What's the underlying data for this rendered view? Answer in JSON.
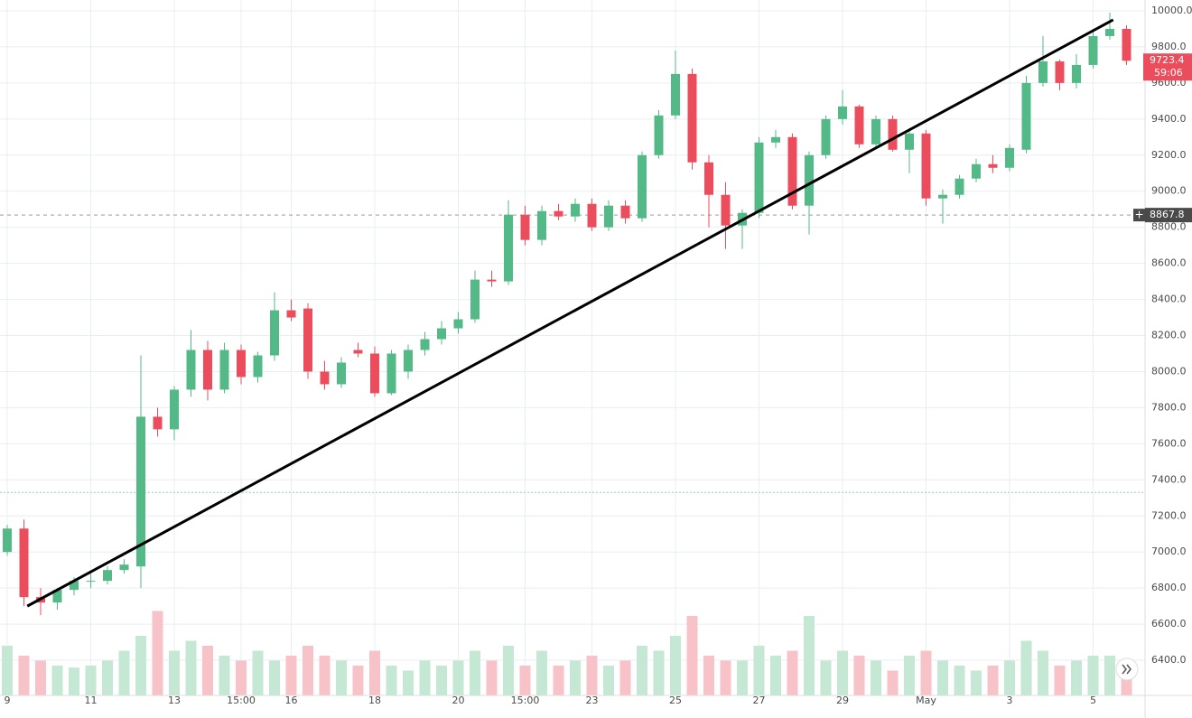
{
  "chart_data": {
    "type": "candlestick",
    "categories": [
      "9",
      null,
      null,
      null,
      null,
      "11",
      null,
      null,
      null,
      null,
      "13",
      null,
      null,
      null,
      "15:00",
      null,
      null,
      "16",
      null,
      null,
      null,
      null,
      "18",
      null,
      null,
      null,
      null,
      "20",
      null,
      null,
      null,
      "15:00",
      null,
      null,
      null,
      "23",
      null,
      null,
      null,
      null,
      "25",
      null,
      null,
      null,
      null,
      "27",
      null,
      null,
      null,
      null,
      "29",
      null,
      null,
      null,
      null,
      "May",
      null,
      null,
      null,
      null,
      "3",
      null,
      null,
      null,
      null,
      "5",
      null,
      null
    ],
    "open": [
      7000,
      7130,
      6750,
      6720,
      6790,
      6840,
      6840,
      6900,
      6920,
      7750,
      7680,
      7900,
      8120,
      7900,
      8120,
      7970,
      8090,
      8340,
      8350,
      8000,
      7930,
      8120,
      8100,
      7880,
      8000,
      8120,
      8180,
      8240,
      8290,
      8510,
      8500,
      8870,
      8730,
      8890,
      8860,
      8930,
      8800,
      8920,
      8850,
      9200,
      9420,
      9650,
      9160,
      8980,
      8810,
      8880,
      9270,
      9300,
      8920,
      9200,
      9400,
      9470,
      9260,
      9400,
      9230,
      9320,
      8960,
      8980,
      9070,
      9150,
      9130,
      9230,
      9600,
      9720,
      9600,
      9700,
      9860,
      9900
    ],
    "high": [
      7150,
      7180,
      6800,
      6800,
      6860,
      6880,
      6920,
      6960,
      8090,
      7800,
      7920,
      8230,
      8170,
      8160,
      8150,
      8110,
      8440,
      8400,
      8380,
      8060,
      8080,
      8160,
      8140,
      8120,
      8150,
      8220,
      8280,
      8330,
      8560,
      8560,
      8950,
      8920,
      8920,
      8930,
      8960,
      8960,
      8950,
      8950,
      9220,
      9450,
      9780,
      9680,
      9200,
      9050,
      8900,
      9300,
      9340,
      9320,
      9220,
      9420,
      9560,
      9480,
      9420,
      9420,
      9350,
      9340,
      9010,
      9090,
      9180,
      9200,
      9260,
      9640,
      9860,
      9730,
      9760,
      9900,
      9990,
      9920
    ],
    "low": [
      6980,
      6700,
      6650,
      6680,
      6760,
      6800,
      6820,
      6880,
      6800,
      7640,
      7620,
      7860,
      7840,
      7880,
      7930,
      7940,
      8060,
      8280,
      7960,
      7900,
      7910,
      8080,
      7860,
      7870,
      7960,
      8090,
      8150,
      8210,
      8270,
      8470,
      8480,
      8700,
      8700,
      8840,
      8830,
      8780,
      8780,
      8820,
      8830,
      9180,
      9400,
      9120,
      8800,
      8680,
      8680,
      8850,
      9240,
      8900,
      8760,
      9180,
      9370,
      9240,
      9240,
      9220,
      9100,
      8920,
      8820,
      8960,
      9050,
      9100,
      9110,
      9210,
      9580,
      9560,
      9570,
      9680,
      9840,
      9700
    ],
    "close": [
      7130,
      6750,
      6720,
      6790,
      6840,
      6840,
      6900,
      6930,
      7750,
      7680,
      7900,
      8120,
      7900,
      8120,
      7970,
      8090,
      8340,
      8300,
      8000,
      7930,
      8050,
      8100,
      7880,
      8100,
      8120,
      8180,
      8240,
      8290,
      8510,
      8500,
      8870,
      8730,
      8890,
      8860,
      8930,
      8800,
      8920,
      8850,
      9200,
      9420,
      9650,
      9160,
      8980,
      8810,
      8880,
      9270,
      9300,
      8920,
      9200,
      9400,
      9470,
      9260,
      9400,
      9230,
      9320,
      8960,
      8980,
      9070,
      9150,
      9130,
      9240,
      9600,
      9720,
      9600,
      9700,
      9860,
      9900,
      9723.4
    ],
    "volume": [
      50,
      40,
      35,
      30,
      28,
      30,
      35,
      45,
      60,
      85,
      45,
      55,
      50,
      40,
      35,
      45,
      35,
      40,
      50,
      40,
      35,
      30,
      45,
      30,
      25,
      35,
      30,
      35,
      45,
      35,
      50,
      30,
      45,
      30,
      35,
      40,
      30,
      35,
      50,
      45,
      60,
      80,
      40,
      35,
      35,
      50,
      40,
      45,
      80,
      35,
      45,
      40,
      35,
      25,
      40,
      45,
      35,
      30,
      25,
      30,
      35,
      55,
      45,
      30,
      35,
      40,
      40,
      35
    ],
    "up_color": "#53b987",
    "down_color": "#eb4d5c",
    "up_volume_color": "#c5e8d5",
    "down_volume_color": "#f7c3c8",
    "ylim": [
      6205,
      10060
    ],
    "yticks": [
      {
        "value": 6400,
        "label": "6400.0"
      },
      {
        "value": 6600,
        "label": "6600.0"
      },
      {
        "value": 6800,
        "label": "6800.0"
      },
      {
        "value": 7000,
        "label": "7000.0"
      },
      {
        "value": 7200,
        "label": "7200.0"
      },
      {
        "value": 7400,
        "label": "7400.0"
      },
      {
        "value": 7600,
        "label": "7600.0"
      },
      {
        "value": 7800,
        "label": "7800.0"
      },
      {
        "value": 8000,
        "label": "8000.0"
      },
      {
        "value": 8200,
        "label": "8200.0"
      },
      {
        "value": 8400,
        "label": "8400.0"
      },
      {
        "value": 8600,
        "label": "8600.0"
      },
      {
        "value": 8800,
        "label": "8800.0"
      },
      {
        "value": 9000,
        "label": "9000.0"
      },
      {
        "value": 9200,
        "label": "9200.0"
      },
      {
        "value": 9400,
        "label": "9400.0"
      },
      {
        "value": 9600,
        "label": "9600.0"
      },
      {
        "value": 9800,
        "label": "9800.0"
      },
      {
        "value": 10000,
        "label": "10000.0"
      }
    ],
    "volume_lim": [
      0,
      100
    ],
    "grid": true,
    "trendline": {
      "x": [
        1.2,
        66.2
      ],
      "y": [
        6700,
        9950
      ],
      "color": "#000000"
    },
    "horizontal_line": {
      "value": 7330,
      "color": "#8fd0c0"
    },
    "crosshair_price": 8867.8,
    "last_price": 9723.4,
    "countdown": "59:06"
  }
}
